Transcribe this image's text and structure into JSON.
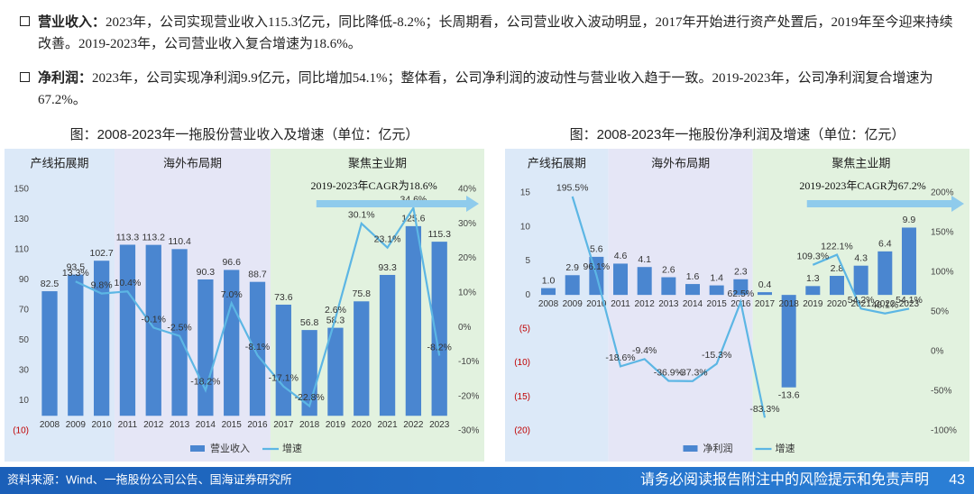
{
  "bullets": [
    {
      "label": "营业收入：",
      "text": "2023年，公司实现营业收入115.3亿元，同比降低-8.2%；长周期看，公司营业收入波动明显，2017年开始进行资产处置后，2019年至今迎来持续改善。2019-2023年，公司营业收入复合增速为18.6%。"
    },
    {
      "label": "净利润：",
      "text": "2023年，公司实现净利润9.9亿元，同比增加54.1%；整体看，公司净利润的波动性与营业收入趋于一致。2019-2023年，公司净利润复合增速为67.2%。"
    }
  ],
  "chart_data": [
    {
      "type": "bar",
      "title": "图：2008-2023年一拖股份营业收入及增速（单位：亿元）",
      "categories": [
        "2008",
        "2009",
        "2010",
        "2011",
        "2012",
        "2013",
        "2014",
        "2015",
        "2016",
        "2017",
        "2018",
        "2019",
        "2020",
        "2021",
        "2022",
        "2023"
      ],
      "series": [
        {
          "name": "营业收入",
          "type": "bar",
          "color": "#4a86d0",
          "values": [
            82.5,
            93.5,
            102.7,
            113.3,
            113.2,
            110.4,
            90.3,
            96.6,
            88.7,
            73.6,
            56.8,
            58.3,
            75.8,
            93.3,
            125.6,
            115.3
          ],
          "value_labels": [
            "82.5",
            "93.5",
            "102.7",
            "113.3",
            "113.2",
            "110.4",
            "90.3",
            "96.6",
            "88.7",
            "73.6",
            "56.8",
            "58.3",
            "75.8",
            "93.3",
            "125.6",
            "115.3"
          ]
        },
        {
          "name": "增速",
          "type": "line",
          "axis": "y2",
          "color": "#5cb6e4",
          "values": [
            null,
            13.3,
            9.8,
            10.4,
            -0.1,
            -2.5,
            -18.2,
            7.0,
            -8.1,
            -17.1,
            -22.8,
            2.6,
            30.1,
            23.1,
            34.6,
            -8.2
          ],
          "value_labels": [
            null,
            "13.3%",
            "9.8%",
            "10.4%",
            "-0.1%",
            "-2.5%",
            "-18.2%",
            "7.0%",
            "-8.1%",
            "-17.1%",
            "-22.8%",
            "2.6%",
            "30.1%",
            "23.1%",
            "34.6%",
            "-8.2%"
          ]
        }
      ],
      "ylim": [
        -10,
        150
      ],
      "yticks": [
        {
          "value": -10,
          "label": "(10)"
        },
        10,
        30,
        50,
        70,
        90,
        110,
        130,
        150
      ],
      "y2lim": [
        -30,
        40
      ],
      "y2ticks": [
        {
          "value": -30,
          "label": "-30%"
        },
        {
          "value": -20,
          "label": "-20%"
        },
        {
          "value": -10,
          "label": "-10%"
        },
        {
          "value": 0,
          "label": "0%"
        },
        {
          "value": 10,
          "label": "10%"
        },
        {
          "value": 20,
          "label": "20%"
        },
        {
          "value": 30,
          "label": "30%"
        },
        {
          "value": 40,
          "label": "40%"
        }
      ],
      "periods": [
        {
          "label": "产线拓展期",
          "start": "2008",
          "end": "2010",
          "color": "#dce9f8"
        },
        {
          "label": "海外布局期",
          "start": "2011",
          "end": "2016",
          "color": "#e5e6f6"
        },
        {
          "label": "聚焦主业期",
          "start": "2017",
          "end": "2023",
          "color": "#e2f2df"
        }
      ],
      "annotation": "2019-2023年CAGR为18.6%",
      "negative_tick_color": "#c00000"
    },
    {
      "type": "bar",
      "title": "图：2008-2023年一拖股份净利润及增速（单位：亿元）",
      "categories": [
        "2008",
        "2009",
        "2010",
        "2011",
        "2012",
        "2013",
        "2014",
        "2015",
        "2016",
        "2017",
        "2018",
        "2019",
        "2020",
        "2021",
        "2022",
        "2023"
      ],
      "series": [
        {
          "name": "净利润",
          "type": "bar",
          "color": "#4a86d0",
          "values": [
            1.0,
            2.9,
            5.6,
            4.6,
            4.1,
            2.6,
            1.6,
            1.4,
            2.3,
            0.4,
            -13.6,
            1.3,
            2.8,
            4.3,
            6.4,
            9.9
          ],
          "value_labels": [
            "1.0",
            "2.9",
            "5.6",
            "4.6",
            "4.1",
            "2.6",
            "1.6",
            "1.4",
            "2.3",
            "0.4",
            "-13.6",
            "1.3",
            "2.8",
            "4.3",
            "6.4",
            "9.9"
          ]
        },
        {
          "name": "增速",
          "type": "line",
          "axis": "y2",
          "color": "#5cb6e4",
          "values": [
            null,
            195.5,
            96.1,
            -18.6,
            -9.4,
            -36.9,
            -37.3,
            -15.3,
            62.5,
            -83.3,
            null,
            109.3,
            122.1,
            54.2,
            48.1,
            54.1
          ],
          "value_labels": [
            null,
            "195.5%",
            "96.1%",
            "-18.6%",
            "-9.4%",
            "-36.9%",
            "-37.3%",
            "-15.3%",
            "62.5%",
            "-83.3%",
            null,
            "109.3%",
            "122.1%",
            "54.2%",
            "48.1%",
            "54.1%"
          ]
        }
      ],
      "ylim": [
        -20,
        15
      ],
      "yticks": [
        {
          "value": -20,
          "label": "(20)"
        },
        {
          "value": -15,
          "label": "(15)"
        },
        {
          "value": -10,
          "label": "(10)"
        },
        {
          "value": -5,
          "label": "(5)"
        },
        0,
        5,
        10,
        15
      ],
      "y2lim": [
        -100,
        200
      ],
      "y2ticks": [
        {
          "value": -100,
          "label": "-100%"
        },
        {
          "value": -50,
          "label": "-50%"
        },
        {
          "value": 0,
          "label": "0%"
        },
        {
          "value": 50,
          "label": "50%"
        },
        {
          "value": 100,
          "label": "100%"
        },
        {
          "value": 150,
          "label": "150%"
        },
        {
          "value": 200,
          "label": "200%"
        }
      ],
      "periods": [
        {
          "label": "产线拓展期",
          "start": "2008",
          "end": "2010",
          "color": "#dce9f8"
        },
        {
          "label": "海外布局期",
          "start": "2011",
          "end": "2016",
          "color": "#e5e6f6"
        },
        {
          "label": "聚焦主业期",
          "start": "2017",
          "end": "2023",
          "color": "#e2f2df"
        }
      ],
      "annotation": "2019-2023年CAGR为67.2%",
      "negative_tick_color": "#c00000"
    }
  ],
  "footer": {
    "source": "资料来源：Wind、一拖股份公司公告、国海证券研究所",
    "disclaimer": "请务必阅读报告附注中的风险提示和免责声明",
    "page": "43"
  }
}
